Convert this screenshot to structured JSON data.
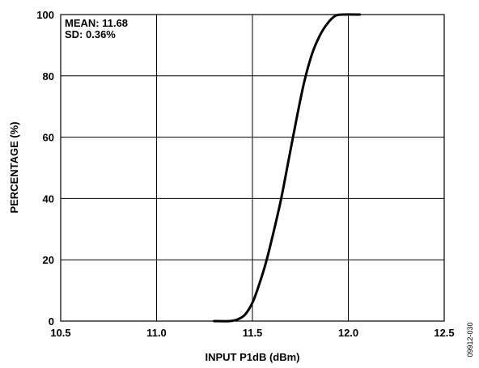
{
  "chart_data": {
    "type": "line",
    "title": "",
    "xlabel": "INPUT P1dB (dBm)",
    "ylabel": "PERCENTAGE (%)",
    "xlim": [
      10.5,
      12.5
    ],
    "ylim": [
      0,
      100
    ],
    "x_ticks": [
      "10.5",
      "11.0",
      "11.5",
      "12.0",
      "12.5"
    ],
    "x_tick_values": [
      10.5,
      11.0,
      11.5,
      12.0,
      12.5
    ],
    "y_ticks": [
      "0",
      "20",
      "40",
      "60",
      "80",
      "100"
    ],
    "y_tick_values": [
      0,
      20,
      40,
      60,
      80,
      100
    ],
    "grid": true,
    "annotations": [
      "MEAN: 11.68",
      "SD: 0.36%"
    ],
    "series": [
      {
        "x": [
          11.3,
          11.38,
          11.42,
          11.46,
          11.5,
          11.53,
          11.57,
          11.61,
          11.65,
          11.69,
          11.73,
          11.77,
          11.81,
          11.85,
          11.89,
          11.93,
          11.97,
          12.06
        ],
        "values": [
          0,
          0,
          0.5,
          2,
          6,
          11,
          19,
          29,
          40,
          53,
          66,
          78,
          87,
          93,
          97,
          99.5,
          100,
          100
        ]
      }
    ],
    "line_color": "#000000"
  },
  "figure_id": "09912-030"
}
